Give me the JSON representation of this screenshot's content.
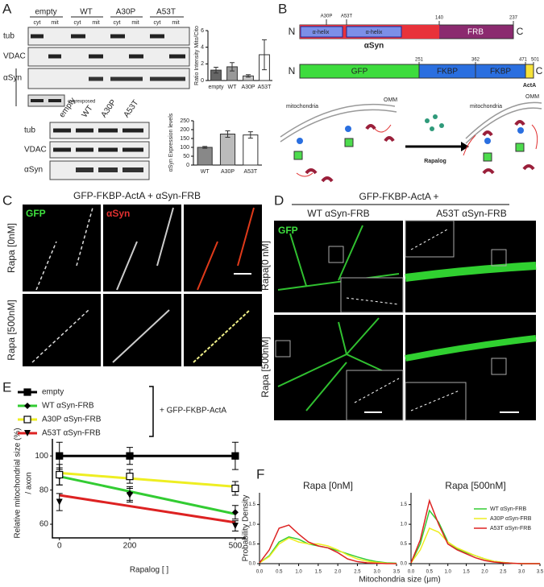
{
  "panel_labels": [
    "A",
    "B",
    "C",
    "D",
    "E",
    "F"
  ],
  "blot_top": {
    "lanes": [
      "empty",
      "WT",
      "A30P",
      "A53T"
    ],
    "fractions": [
      "cyt",
      "mit",
      "cyt",
      "mit",
      "cyt",
      "mit",
      "cyt",
      "mit"
    ],
    "rows": [
      "tub",
      "VDAC",
      "αSyn"
    ],
    "note": "overexposed"
  },
  "blot_bottom": {
    "lanes": [
      "empty",
      "WT",
      "A30P",
      "A53T"
    ],
    "rows": [
      "tub",
      "VDAC",
      "αSyn"
    ]
  },
  "diagram": {
    "syn": {
      "n": "N",
      "c": "C",
      "helix1": "α-helix",
      "helix2": "α-helix",
      "name": "αSyn",
      "mut1": "A30P",
      "mut2": "A53T",
      "pos1": "140",
      "pos2": "237",
      "frb": "FRB"
    },
    "actA": {
      "n": "N",
      "c": "C",
      "gfp": "GFP",
      "fkbp1": "FKBP",
      "fkbp2": "FKBP",
      "acta": "ActA",
      "pos1": "251",
      "pos2": "362",
      "pos3": "471",
      "pos4": "501"
    },
    "scheme": {
      "left": "mitochondria",
      "left_omm": "OMM",
      "arrow": "Rapalog",
      "right": "mitochondria",
      "right_omm": "OMM"
    }
  },
  "panel_c": {
    "title": "GFP-FKBP-ActA + αSyn-FRB",
    "ch1": "GFP",
    "ch2": "αSyn",
    "rows": [
      "Rapa [0nM]",
      "Rapa [500nM]"
    ]
  },
  "panel_d": {
    "title": "GFP-FKBP-ActA +",
    "cols": [
      "WT αSyn-FRB",
      "A53T αSyn-FRB"
    ],
    "ch": "GFP",
    "rows": [
      "Rapa[0 nM]",
      "Rapa [500nM]"
    ]
  },
  "chart_data": [
    {
      "type": "bar",
      "y_label": "Ratio Intensity Mito/Cito",
      "categories": [
        "empty",
        "WT",
        "A30P",
        "A53T"
      ],
      "values": [
        1.25,
        1.65,
        0.55,
        3.1
      ],
      "errors": [
        0.35,
        0.5,
        0.15,
        1.8
      ],
      "colors": [
        "#666666",
        "#999999",
        "#cccccc",
        "#ffffff"
      ],
      "ylim": [
        0,
        6
      ],
      "yticks": [
        0,
        2,
        4,
        6
      ]
    },
    {
      "type": "bar",
      "y_label": "αSyn Expression levels",
      "categories": [
        "WT",
        "A30P",
        "A53T"
      ],
      "values": [
        100,
        175,
        170
      ],
      "errors": [
        5,
        18,
        18
      ],
      "colors": [
        "#888888",
        "#bbbbbb",
        "#ffffff"
      ],
      "ylim": [
        0,
        250
      ],
      "yticks": [
        0,
        50,
        100,
        150,
        200,
        250
      ]
    },
    {
      "type": "line",
      "y_label": "Relative mitochondrial size (%)",
      "y_label2": "/ axon",
      "x_label": "Rapalog [ ]",
      "legend_note": "+ GFP-FKBP-ActA",
      "x": [
        0,
        200,
        500
      ],
      "xlim": [
        -20,
        530
      ],
      "xticks": [
        0,
        200,
        500
      ],
      "ylim": [
        52,
        110
      ],
      "yticks": [
        60,
        80,
        100
      ],
      "series": [
        {
          "name": "empty",
          "color": "#000000",
          "marker": "square",
          "values": [
            100,
            100,
            100
          ],
          "errors": [
            8,
            5,
            8
          ],
          "fit": [
            100,
            100
          ]
        },
        {
          "name": "WT αSyn-FRB",
          "color": "#33cc33",
          "marker": "diamond",
          "values": [
            88,
            78,
            67
          ],
          "errors": [
            5,
            4,
            4
          ],
          "fit": [
            88,
            66
          ]
        },
        {
          "name": "A30P αSyn-FRB",
          "color": "#eeee22",
          "marker": "open-square",
          "values": [
            89,
            88,
            81
          ],
          "errors": [
            6,
            4,
            4
          ],
          "fit": [
            90,
            82
          ]
        },
        {
          "name": "A53T αSyn-FRB",
          "color": "#dd2222",
          "marker": "triangle-down",
          "values": [
            73,
            77,
            59
          ],
          "errors": [
            5,
            4,
            3
          ],
          "fit": [
            77,
            61
          ]
        }
      ]
    },
    {
      "type": "density",
      "title": "Rapa [0nM]",
      "y_label": "Probability Density",
      "x_label": "Mitochondria size (μm)",
      "x": [
        0,
        0.25,
        0.5,
        0.75,
        1,
        1.25,
        1.5,
        1.75,
        2,
        2.25,
        2.5,
        2.75,
        3,
        3.25,
        3.5
      ],
      "xlim": [
        0,
        3.5
      ],
      "xticks": [
        {
          "value": 0,
          "label": "0.0"
        },
        0.5,
        {
          "value": 1,
          "label": "1.0"
        },
        1.5,
        {
          "value": 2,
          "label": "2.0"
        },
        2.5,
        {
          "value": 3,
          "label": "3.0"
        },
        3.5
      ],
      "ylim": [
        0,
        1.8
      ],
      "yticks": [
        {
          "value": 0,
          "label": "0.0"
        },
        0.5,
        {
          "value": 1,
          "label": "1.0"
        },
        1.5
      ],
      "series": [
        {
          "color": "#33cc33",
          "values": [
            0.02,
            0.2,
            0.55,
            0.68,
            0.62,
            0.5,
            0.45,
            0.4,
            0.33,
            0.25,
            0.17,
            0.1,
            0.05,
            0.02,
            0.01
          ]
        },
        {
          "color": "#eeee22",
          "values": [
            0.02,
            0.18,
            0.5,
            0.65,
            0.55,
            0.5,
            0.5,
            0.45,
            0.35,
            0.22,
            0.12,
            0.06,
            0.03,
            0.01,
            0
          ]
        },
        {
          "color": "#dd2222",
          "values": [
            0.02,
            0.35,
            0.9,
            0.98,
            0.75,
            0.55,
            0.45,
            0.4,
            0.28,
            0.12,
            0.05,
            0.02,
            0.01,
            0,
            0
          ]
        }
      ]
    },
    {
      "type": "density",
      "title": "Rapa [500nM]",
      "x": [
        0,
        0.25,
        0.5,
        0.75,
        1,
        1.25,
        1.5,
        1.75,
        2,
        2.25,
        2.5,
        2.75,
        3,
        3.25,
        3.5
      ],
      "xlim": [
        0,
        3.5
      ],
      "xticks": [
        {
          "value": 0,
          "label": "0.0"
        },
        0.5,
        {
          "value": 1,
          "label": "1.0"
        },
        1.5,
        {
          "value": 2,
          "label": "2.0"
        },
        2.5,
        {
          "value": 3,
          "label": "3.0"
        },
        3.5
      ],
      "ylim": [
        0,
        1.8
      ],
      "yticks": [
        {
          "value": 0,
          "label": "0.0"
        },
        0.5,
        {
          "value": 1,
          "label": "1.0"
        },
        1.5
      ],
      "series": [
        {
          "name": "WT αSyn-FRB",
          "color": "#33cc33",
          "values": [
            0.02,
            0.5,
            1.35,
            1.05,
            0.55,
            0.38,
            0.28,
            0.2,
            0.12,
            0.06,
            0.03,
            0.01,
            0,
            0,
            0
          ]
        },
        {
          "name": "A30P αSyn-FRB",
          "color": "#eeee22",
          "values": [
            0.02,
            0.35,
            0.9,
            0.8,
            0.55,
            0.4,
            0.3,
            0.2,
            0.12,
            0.06,
            0.03,
            0.01,
            0,
            0,
            0
          ]
        },
        {
          "name": "A53T αSyn-FRB",
          "color": "#dd2222",
          "values": [
            0.02,
            0.6,
            1.6,
            1.0,
            0.5,
            0.35,
            0.25,
            0.15,
            0.08,
            0.04,
            0.02,
            0.01,
            0,
            0,
            0
          ]
        }
      ]
    }
  ]
}
